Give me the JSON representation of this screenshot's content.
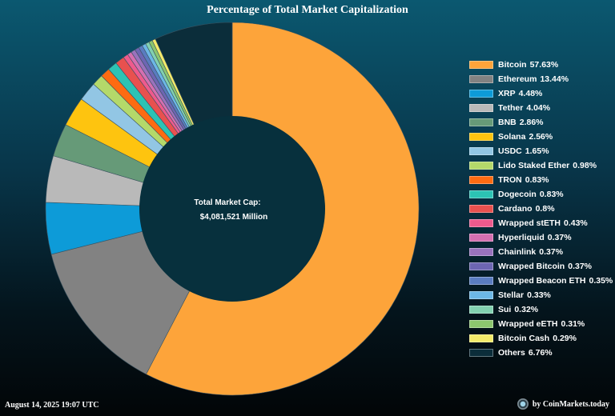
{
  "header": {
    "title": "Percentage of Total Market Capitalization"
  },
  "center": {
    "label": "Total Market Cap:",
    "value": "$4,081,521 Million"
  },
  "footer": {
    "timestamp": "August 14, 2025 19:07 UTC",
    "brand": "by CoinMarkets.today"
  },
  "chart_data": {
    "type": "pie",
    "donut": true,
    "title": "Percentage of Total Market Capitalization",
    "legend_position": "right",
    "slices": [
      {
        "name": "Bitcoin",
        "value": 57.63,
        "label": "57.63%",
        "color": "#fda43a"
      },
      {
        "name": "Ethereum",
        "value": 13.44,
        "label": "13.44%",
        "color": "#828282"
      },
      {
        "name": "XRP",
        "value": 4.48,
        "label": "4.48%",
        "color": "#0d9bd8"
      },
      {
        "name": "Tether",
        "value": 4.04,
        "label": "4.04%",
        "color": "#b9b9b9"
      },
      {
        "name": "BNB",
        "value": 2.86,
        "label": "2.86%",
        "color": "#669a78"
      },
      {
        "name": "Solana",
        "value": 2.56,
        "label": "2.56%",
        "color": "#fec40f"
      },
      {
        "name": "USDC",
        "value": 1.65,
        "label": "1.65%",
        "color": "#92c6e4"
      },
      {
        "name": "Lido Staked Ether",
        "value": 0.98,
        "label": "0.98%",
        "color": "#b4d96a"
      },
      {
        "name": "TRON",
        "value": 0.83,
        "label": "0.83%",
        "color": "#fd6b12"
      },
      {
        "name": "Dogecoin",
        "value": 0.83,
        "label": "0.83%",
        "color": "#2cc3b4"
      },
      {
        "name": "Cardano",
        "value": 0.8,
        "label": "0.8%",
        "color": "#e8514f"
      },
      {
        "name": "Wrapped stETH",
        "value": 0.43,
        "label": "0.43%",
        "color": "#ee5a8d"
      },
      {
        "name": "Hyperliquid",
        "value": 0.37,
        "label": "0.37%",
        "color": "#d56fb0"
      },
      {
        "name": "Chainlink",
        "value": 0.37,
        "label": "0.37%",
        "color": "#9a72bd"
      },
      {
        "name": "Wrapped Bitcoin",
        "value": 0.37,
        "label": "0.37%",
        "color": "#6d66b3"
      },
      {
        "name": "Wrapped Beacon ETH",
        "value": 0.35,
        "label": "0.35%",
        "color": "#5a7cc0"
      },
      {
        "name": "Stellar",
        "value": 0.33,
        "label": "0.33%",
        "color": "#6cb7e6"
      },
      {
        "name": "Sui",
        "value": 0.32,
        "label": "0.32%",
        "color": "#82d1b0"
      },
      {
        "name": "Wrapped eETH",
        "value": 0.31,
        "label": "0.31%",
        "color": "#8cc66e"
      },
      {
        "name": "Bitcoin Cash",
        "value": 0.29,
        "label": "0.29%",
        "color": "#f4ea6a"
      },
      {
        "name": "Others",
        "value": 6.76,
        "label": "6.76%",
        "color": "#0b2d3a"
      }
    ]
  }
}
